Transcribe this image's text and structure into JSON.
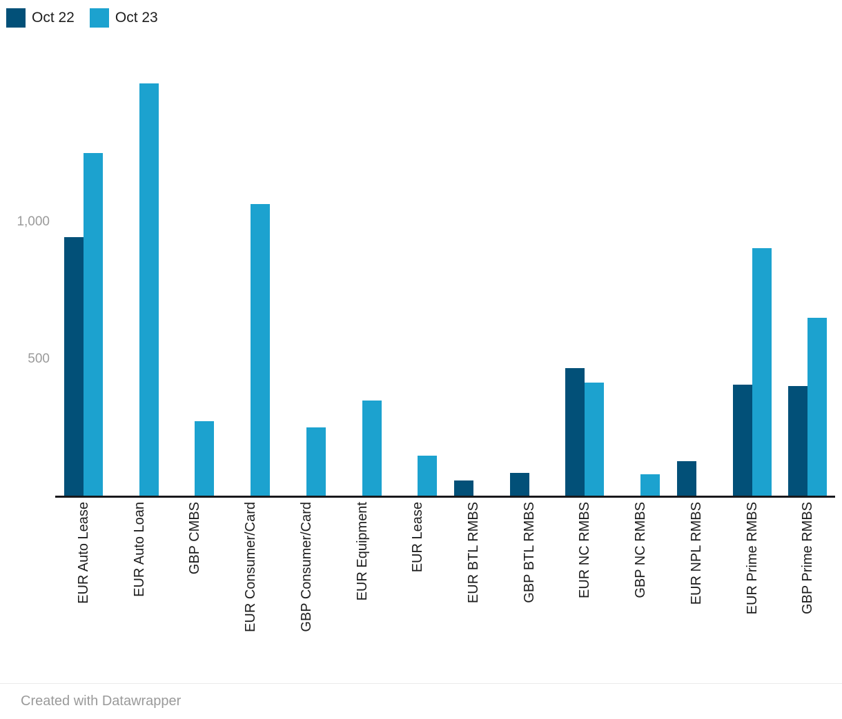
{
  "footer": {
    "text": "Created with Datawrapper"
  },
  "colors": {
    "oct22": "#025078",
    "oct23": "#1CA2CF",
    "axis": "#18181b",
    "tick_text": "#9a9a9a",
    "label_text": "#1d1d1d"
  },
  "chart_data": {
    "type": "bar",
    "categories": [
      "EUR Auto Lease",
      "EUR Auto Loan",
      "GBP CMBS",
      "EUR Consumer/Card",
      "GBP Consumer/Card",
      "EUR Equipment",
      "EUR Lease",
      "EUR BTL RMBS",
      "GBP BTL RMBS",
      "EUR NC RMBS",
      "GBP NC RMBS",
      "EUR NPL RMBS",
      "EUR Prime RMBS",
      "GBP Prime RMBS"
    ],
    "series": [
      {
        "name": "Oct 22",
        "color": "#025078",
        "values": [
          945,
          0,
          0,
          0,
          0,
          0,
          0,
          58,
          85,
          467,
          0,
          128,
          407,
          402
        ]
      },
      {
        "name": "Oct 23",
        "color": "#1CA2CF",
        "values": [
          1250,
          1505,
          275,
          1065,
          250,
          350,
          148,
          0,
          0,
          415,
          80,
          0,
          905,
          650
        ]
      }
    ],
    "yticks": [
      {
        "value": 500,
        "label": "500"
      },
      {
        "value": 1000,
        "label": "1,000"
      }
    ],
    "ylim": [
      0,
      1600
    ],
    "grid": false,
    "legend_position": "top-left",
    "title": "",
    "xlabel": "",
    "ylabel": ""
  }
}
